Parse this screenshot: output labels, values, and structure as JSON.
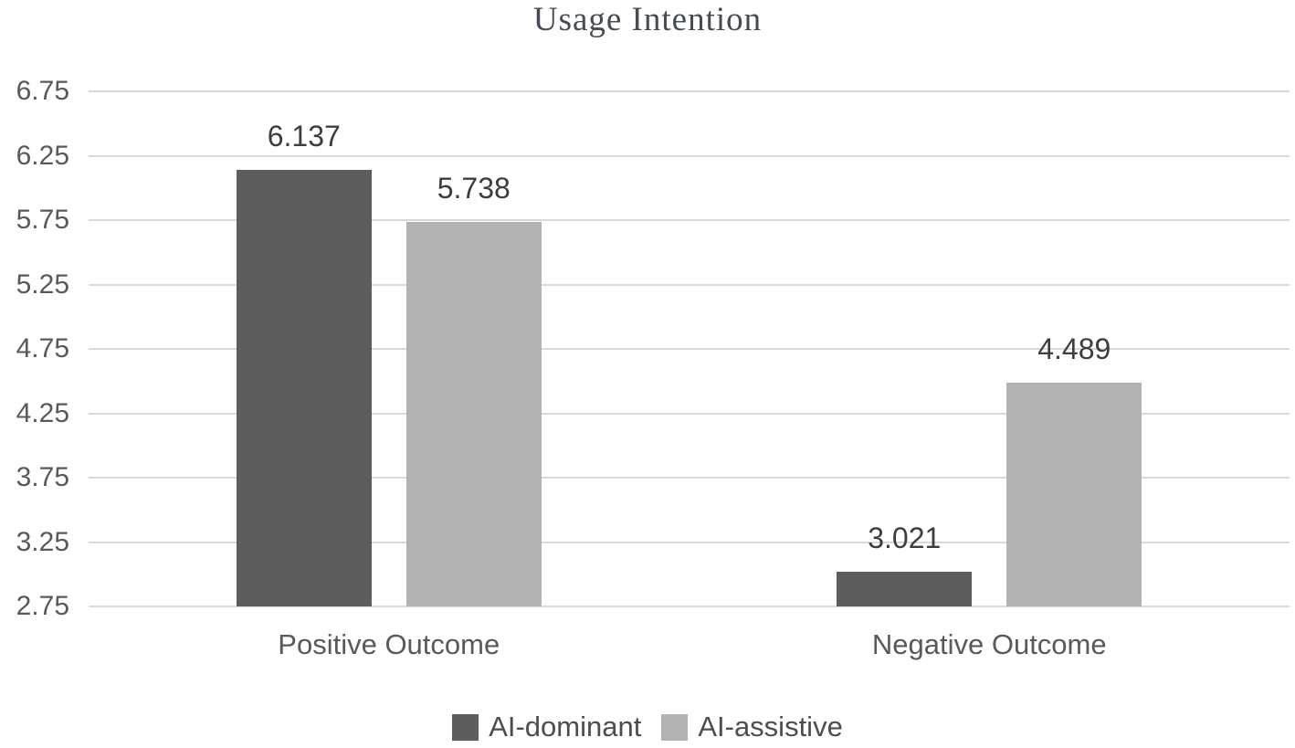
{
  "chart_data": {
    "type": "bar",
    "title": "Usage Intention",
    "categories": [
      "Positive Outcome",
      "Negative Outcome"
    ],
    "series": [
      {
        "name": "AI-dominant",
        "color": "#5d5d5d",
        "values": [
          6.137,
          3.021
        ]
      },
      {
        "name": "AI-assistive",
        "color": "#b2b2b2",
        "values": [
          5.738,
          4.489
        ]
      }
    ],
    "data_labels": [
      [
        "6.137",
        "3.021"
      ],
      [
        "5.738",
        "4.489"
      ]
    ],
    "ylim": [
      2.75,
      6.75
    ],
    "yticks": [
      "6.75",
      "6.25",
      "5.75",
      "5.25",
      "4.75",
      "4.25",
      "3.75",
      "3.25",
      "2.75"
    ],
    "grid": "horizontal",
    "legend_position": "bottom",
    "colors": {
      "grid": "#d9d9d9",
      "tick_label": "#595959",
      "value_label": "#3d3d3d",
      "category_label": "#595959",
      "legend_label": "#4d4d4d",
      "title": "#474c54",
      "background": "#ffffff"
    }
  }
}
